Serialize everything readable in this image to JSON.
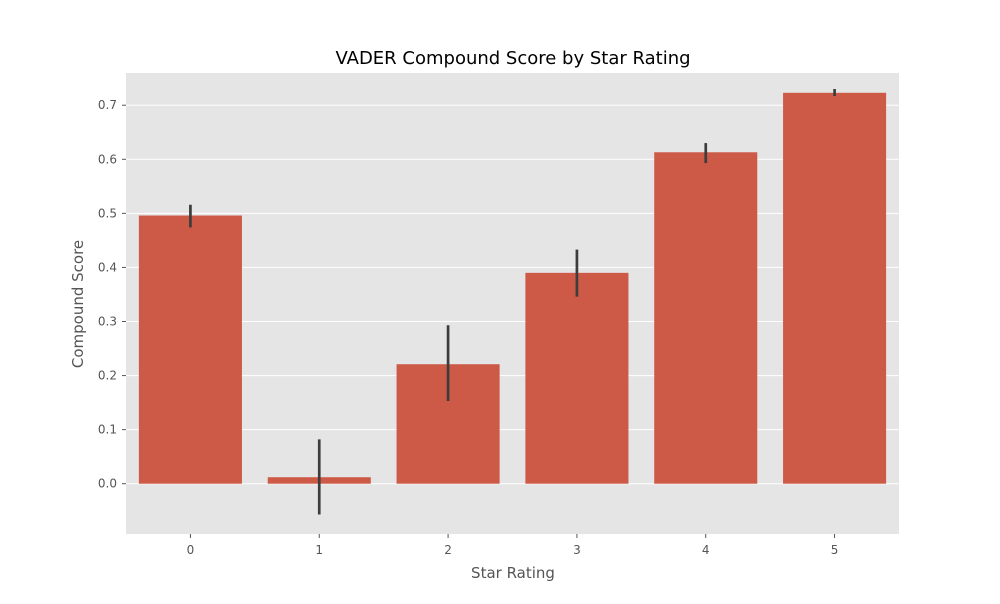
{
  "chart_data": {
    "type": "bar",
    "title": "VADER Compound Score by Star Rating",
    "xlabel": "Star Rating",
    "ylabel": "Compound Score",
    "categories": [
      "0",
      "1",
      "2",
      "3",
      "4",
      "5"
    ],
    "values": [
      0.496,
      0.012,
      0.221,
      0.39,
      0.613,
      0.723
    ],
    "error_low": [
      0.474,
      -0.057,
      0.153,
      0.346,
      0.593,
      0.717
    ],
    "error_high": [
      0.516,
      0.082,
      0.293,
      0.433,
      0.63,
      0.73
    ],
    "y_ticks": [
      0.0,
      0.1,
      0.2,
      0.3,
      0.4,
      0.5,
      0.6,
      0.7
    ],
    "ylim": [
      -0.093,
      0.7596
    ],
    "grid": true,
    "colors": {
      "bar": "#cd5a47",
      "error_bar": "#3d3d3d",
      "plot_background": "#e5e5e5",
      "grid": "#ffffff"
    }
  }
}
